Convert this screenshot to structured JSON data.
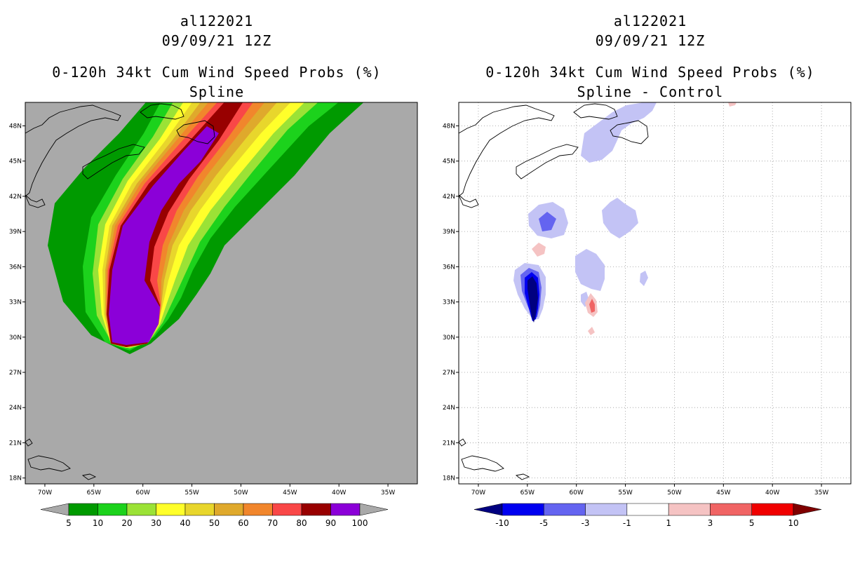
{
  "left": {
    "title_storm": "al122021",
    "title_date": "09/09/21 12Z",
    "title_product": "0-120h 34kt Cum Wind Speed Probs (%)",
    "title_method": "Spline",
    "lat_labels": [
      "48N",
      "45N",
      "42N",
      "39N",
      "36N",
      "33N",
      "30N",
      "27N",
      "24N",
      "21N",
      "18N"
    ],
    "lon_labels": [
      "70W",
      "65W",
      "60W",
      "55W",
      "50W",
      "45W",
      "40W",
      "35W"
    ],
    "colorbar": {
      "labels": [
        "5",
        "10",
        "20",
        "30",
        "40",
        "50",
        "60",
        "70",
        "80",
        "90",
        "100"
      ],
      "colors": [
        "#a9a9a9",
        "#009a00",
        "#1cd21c",
        "#9be236",
        "#ffff2a",
        "#e8d62c",
        "#dfa92c",
        "#f1862c",
        "#f94747",
        "#980000",
        "#8b00d8",
        "#a9a9a9"
      ]
    },
    "band_colors": {
      "background": "#a9a9a9",
      "p5": "#009a00",
      "p10": "#1cd21c",
      "p20": "#9be236",
      "p30": "#ffff2a",
      "p40": "#e8d62c",
      "p50": "#dfa92c",
      "p60": "#f1862c",
      "p70": "#f94747",
      "p80": "#980000",
      "p90": "#8b00d8"
    }
  },
  "right": {
    "title_storm": "al122021",
    "title_date": "09/09/21 12Z",
    "title_product": "0-120h 34kt Cum Wind Speed Probs (%)",
    "title_method": "Spline - Control",
    "lat_labels": [
      "48N",
      "45N",
      "42N",
      "39N",
      "36N",
      "33N",
      "30N",
      "27N",
      "24N",
      "21N",
      "18N"
    ],
    "lon_labels": [
      "70W",
      "65W",
      "60W",
      "55W",
      "50W",
      "45W",
      "40W",
      "35W"
    ],
    "colorbar": {
      "labels": [
        "-10",
        "-5",
        "-3",
        "-1",
        "1",
        "3",
        "5",
        "10"
      ],
      "colors": [
        "#000080",
        "#0000f0",
        "#6464f0",
        "#c3c3f5",
        "#ffffff",
        "#f5c3c3",
        "#f06464",
        "#f00000",
        "#800000"
      ]
    }
  }
}
